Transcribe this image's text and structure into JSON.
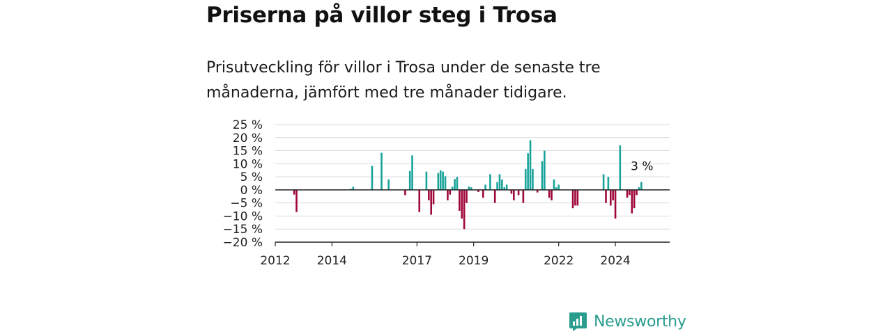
{
  "title": "Priserna på villor steg i Trosa",
  "subtitle": "Prisutveckling för villor i Trosa under de senaste tre månaderna, jämfört med tre månader tidigare.",
  "brand": "Newsworthy",
  "colors": {
    "positive": "#1aa39a",
    "negative": "#a0083d",
    "grid": "#d9d9d9",
    "axis": "#222222",
    "brand": "#2a9d8f"
  },
  "chart_data": {
    "type": "bar",
    "x_unit": "date",
    "y_unit": "%",
    "ylim": [
      -20,
      25
    ],
    "y_ticks": [
      {
        "value": 25,
        "label": "25 %"
      },
      {
        "value": 20,
        "label": "20 %"
      },
      {
        "value": 15,
        "label": "15 %"
      },
      {
        "value": 10,
        "label": "10 %"
      },
      {
        "value": 5,
        "label": "5 %"
      },
      {
        "value": 0,
        "label": "0 %"
      },
      {
        "value": -5,
        "label": "−5 %"
      },
      {
        "value": -10,
        "label": "−10 %"
      },
      {
        "value": -15,
        "label": "−15 %"
      },
      {
        "value": -20,
        "label": "−20 %"
      }
    ],
    "xlim": [
      "2012-01",
      "2025-12"
    ],
    "x_ticks": [
      {
        "value": "2012-01",
        "label": "2012"
      },
      {
        "value": "2014-01",
        "label": "2014"
      },
      {
        "value": "2017-01",
        "label": "2017"
      },
      {
        "value": "2019-01",
        "label": "2019"
      },
      {
        "value": "2022-01",
        "label": "2022"
      },
      {
        "value": "2024-01",
        "label": "2024"
      }
    ],
    "grid": true,
    "last_value_label": "3 %",
    "points": [
      {
        "x": "2012-09",
        "y": -1.8
      },
      {
        "x": "2012-10",
        "y": -8.5
      },
      {
        "x": "2014-09",
        "y": 0.4
      },
      {
        "x": "2014-10",
        "y": 1.2
      },
      {
        "x": "2015-06",
        "y": 9.2
      },
      {
        "x": "2015-10",
        "y": 14.2
      },
      {
        "x": "2016-01",
        "y": 4.0
      },
      {
        "x": "2016-08",
        "y": -2.0
      },
      {
        "x": "2016-10",
        "y": 7.2
      },
      {
        "x": "2016-11",
        "y": 13.2
      },
      {
        "x": "2017-02",
        "y": -8.5
      },
      {
        "x": "2017-05",
        "y": 7.0
      },
      {
        "x": "2017-06",
        "y": -4.0
      },
      {
        "x": "2017-07",
        "y": -9.5
      },
      {
        "x": "2017-08",
        "y": -5.5
      },
      {
        "x": "2017-10",
        "y": 6.5
      },
      {
        "x": "2017-11",
        "y": 7.5
      },
      {
        "x": "2017-12",
        "y": 7.0
      },
      {
        "x": "2018-01",
        "y": 5.2
      },
      {
        "x": "2018-02",
        "y": -4.0
      },
      {
        "x": "2018-03",
        "y": -1.8
      },
      {
        "x": "2018-04",
        "y": 1.2
      },
      {
        "x": "2018-05",
        "y": 4.2
      },
      {
        "x": "2018-06",
        "y": 5.0
      },
      {
        "x": "2018-07",
        "y": -8.0
      },
      {
        "x": "2018-08",
        "y": -11.0
      },
      {
        "x": "2018-09",
        "y": -15.0
      },
      {
        "x": "2018-10",
        "y": -5.0
      },
      {
        "x": "2018-11",
        "y": 1.3
      },
      {
        "x": "2018-12",
        "y": 1.0
      },
      {
        "x": "2019-03",
        "y": -0.8
      },
      {
        "x": "2019-05",
        "y": -3.0
      },
      {
        "x": "2019-06",
        "y": 2.0
      },
      {
        "x": "2019-08",
        "y": 6.0
      },
      {
        "x": "2019-10",
        "y": -5.0
      },
      {
        "x": "2019-11",
        "y": 3.0
      },
      {
        "x": "2019-12",
        "y": 6.0
      },
      {
        "x": "2020-01",
        "y": 4.0
      },
      {
        "x": "2020-02",
        "y": 1.0
      },
      {
        "x": "2020-03",
        "y": 2.0
      },
      {
        "x": "2020-05",
        "y": -1.5
      },
      {
        "x": "2020-06",
        "y": -4.0
      },
      {
        "x": "2020-08",
        "y": -2.0
      },
      {
        "x": "2020-10",
        "y": -5.0
      },
      {
        "x": "2020-11",
        "y": 8.0
      },
      {
        "x": "2020-12",
        "y": 14.0
      },
      {
        "x": "2021-01",
        "y": 19.0
      },
      {
        "x": "2021-02",
        "y": 8.0
      },
      {
        "x": "2021-04",
        "y": -1.0
      },
      {
        "x": "2021-06",
        "y": 11.0
      },
      {
        "x": "2021-07",
        "y": 15.0
      },
      {
        "x": "2021-09",
        "y": -3.0
      },
      {
        "x": "2021-10",
        "y": -4.0
      },
      {
        "x": "2021-11",
        "y": 4.0
      },
      {
        "x": "2021-12",
        "y": 1.0
      },
      {
        "x": "2022-01",
        "y": 2.0
      },
      {
        "x": "2022-07",
        "y": -7.0
      },
      {
        "x": "2022-08",
        "y": -6.0
      },
      {
        "x": "2022-09",
        "y": -6.0
      },
      {
        "x": "2023-08",
        "y": 6.0
      },
      {
        "x": "2023-09",
        "y": -5.0
      },
      {
        "x": "2023-10",
        "y": 5.0
      },
      {
        "x": "2023-11",
        "y": -6.0
      },
      {
        "x": "2023-12",
        "y": -4.0
      },
      {
        "x": "2024-01",
        "y": -11.0
      },
      {
        "x": "2024-03",
        "y": 17.0
      },
      {
        "x": "2024-06",
        "y": -3.0
      },
      {
        "x": "2024-07",
        "y": -2.0
      },
      {
        "x": "2024-08",
        "y": -9.0
      },
      {
        "x": "2024-09",
        "y": -7.0
      },
      {
        "x": "2024-10",
        "y": -2.0
      },
      {
        "x": "2024-11",
        "y": 1.0
      },
      {
        "x": "2024-12",
        "y": 3.0
      }
    ]
  }
}
